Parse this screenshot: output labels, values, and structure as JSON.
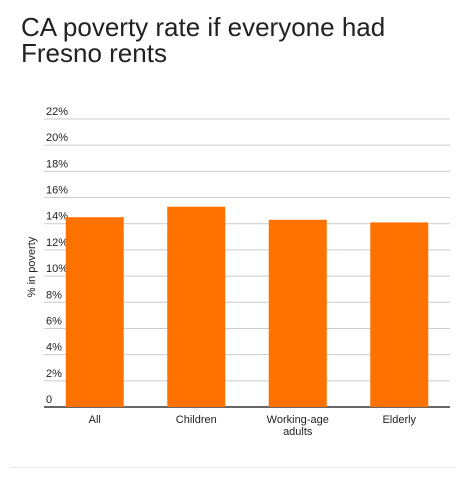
{
  "chart_data": {
    "type": "bar",
    "title": "CA poverty rate if everyone had Fresno rents",
    "xlabel": "",
    "ylabel": "% in poverty",
    "categories": [
      "All",
      "Children",
      "Working-age adults",
      "Elderly"
    ],
    "category_lines": [
      [
        "All"
      ],
      [
        "Children"
      ],
      [
        "Working-age",
        "adults"
      ],
      [
        "Elderly"
      ]
    ],
    "values": [
      14.5,
      15.3,
      14.3,
      14.1
    ],
    "ylim": [
      0,
      22
    ],
    "yticks": [
      0,
      2,
      4,
      6,
      8,
      10,
      12,
      14,
      16,
      18,
      20,
      22
    ],
    "ytick_labels": [
      "0",
      "2%",
      "4%",
      "6%",
      "8%",
      "10%",
      "12%",
      "14%",
      "16%",
      "18%",
      "20%",
      "22%"
    ],
    "grid": true,
    "colors": {
      "bar": "#ff7200",
      "grid": "#cccccc",
      "axis": "#333333",
      "text": "#222222"
    }
  }
}
